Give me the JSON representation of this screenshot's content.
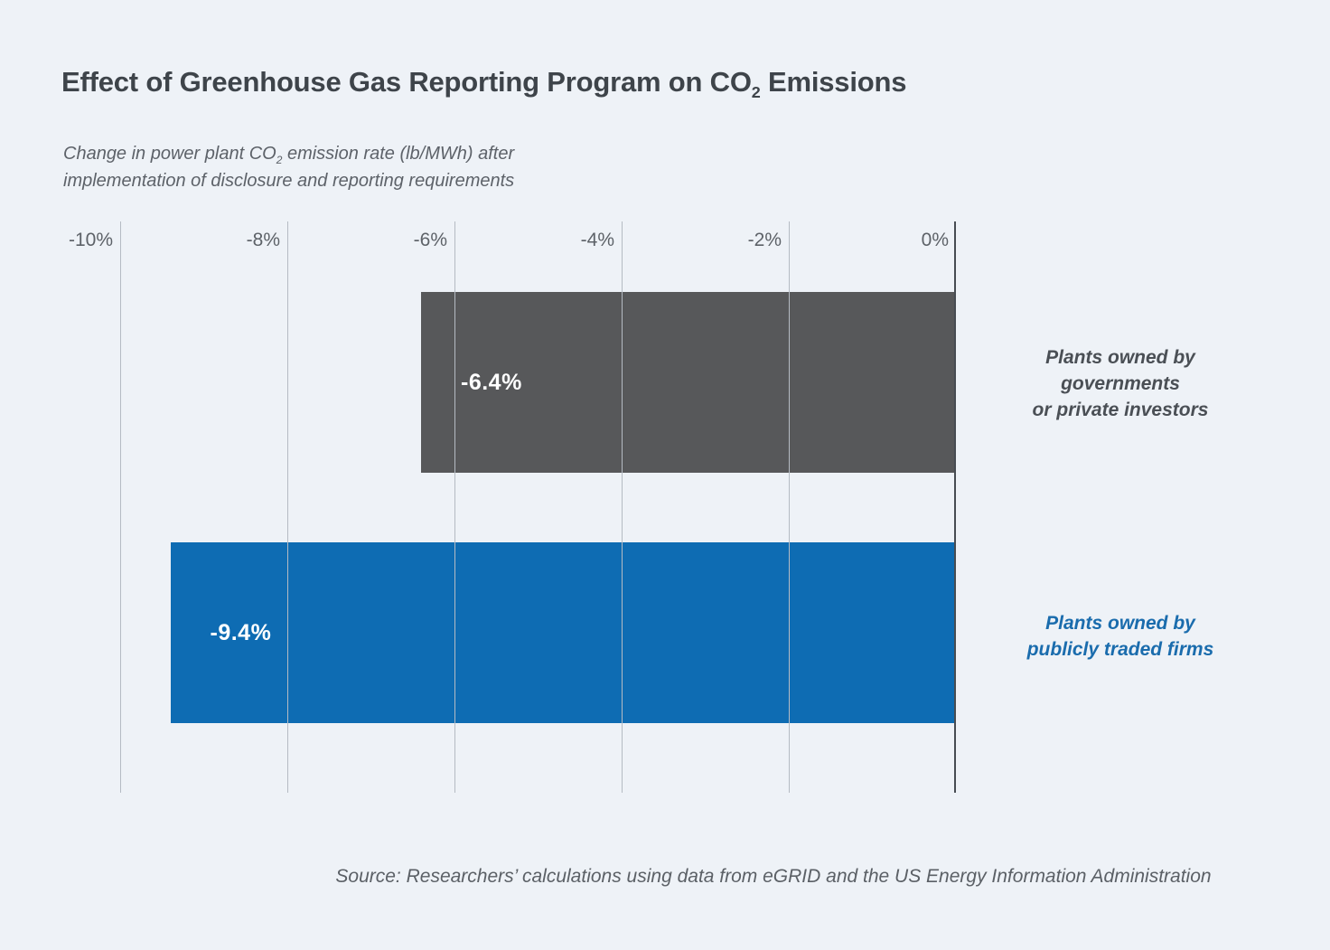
{
  "page": {
    "background": "#eef2f7"
  },
  "header": {
    "title_prefix": "Effect of Greenhouse Gas Reporting Program on CO",
    "title_sub": "2",
    "title_suffix": " Emissions"
  },
  "subtitle": {
    "line1_prefix": "Change in power plant CO",
    "line1_sub": "2",
    "line1_suffix": " emission rate (lb/MWh) after",
    "line2": "implementation of disclosure and reporting requirements"
  },
  "chart_data": {
    "type": "bar",
    "orientation": "horizontal",
    "title": "Effect of Greenhouse Gas Reporting Program on CO2 Emissions",
    "xlabel": "Change in power plant CO2 emission rate (lb/MWh) after implementation of disclosure and reporting requirements",
    "xlim": [
      -10,
      0
    ],
    "grid": true,
    "x_ticks": [
      "-10%",
      "-8%",
      "-6%",
      "-4%",
      "-2%",
      "0%"
    ],
    "x_tick_values": [
      -10,
      -8,
      -6,
      -4,
      -2,
      0
    ],
    "categories": [
      "Plants owned by governments or private investors",
      "Plants owned by publicly traded firms"
    ],
    "categories_lines": [
      [
        "Plants owned by",
        "governments",
        "or private investors"
      ],
      [
        "Plants owned by",
        "publicly traded firms"
      ]
    ],
    "values": [
      -6.4,
      -9.4
    ],
    "value_labels": [
      "-6.4%",
      "-9.4%"
    ],
    "bar_colors": [
      "#57585a",
      "#0e6cb3"
    ],
    "category_label_colors": [
      "#4a4f55",
      "#1a6cad"
    ],
    "gridline_color": "#b5bbc3",
    "zero_axis_color": "#474c52",
    "legend": "none"
  },
  "source": {
    "text": "Source: Researchers’ calculations using data from eGRID and the US Energy Information Administration"
  }
}
